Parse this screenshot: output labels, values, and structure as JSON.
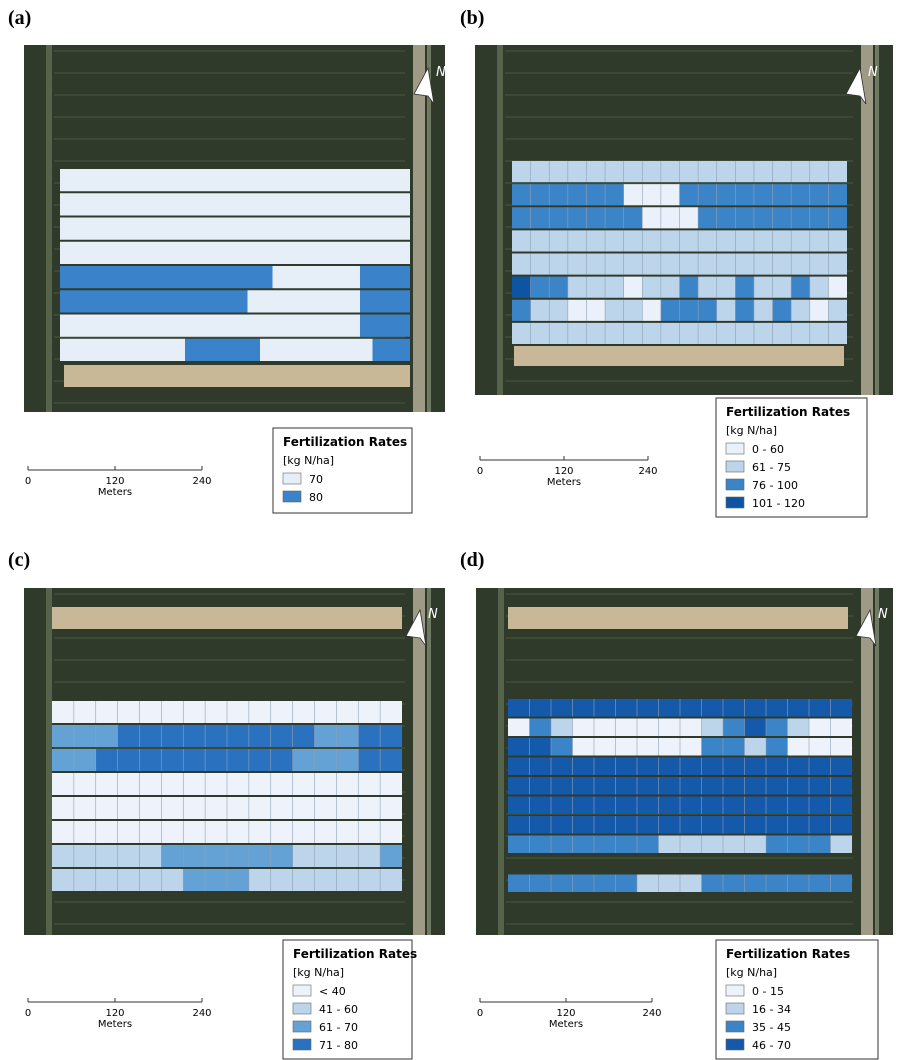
{
  "panels": [
    {
      "label": "(a)",
      "north": "N",
      "legend": {
        "title": "Fertilization Rates",
        "unit": "[kg N/ha]",
        "items": [
          {
            "label": "70",
            "color": "#e6eef8"
          },
          {
            "label": "80",
            "color": "#3a82c9"
          }
        ]
      },
      "scale": {
        "ticks": [
          "0",
          "120",
          "240"
        ],
        "unit": "Meters"
      }
    },
    {
      "label": "(b)",
      "north": "N",
      "legend": {
        "title": "Fertilization Rates",
        "unit": "[kg N/ha]",
        "items": [
          {
            "label": "0 - 60",
            "color": "#eaf1fa"
          },
          {
            "label": "61 - 75",
            "color": "#bcd5ea"
          },
          {
            "label": "76 - 100",
            "color": "#3b84c8"
          },
          {
            "label": "101 - 120",
            "color": "#0d55a3"
          }
        ]
      },
      "scale": {
        "ticks": [
          "0",
          "120",
          "240"
        ],
        "unit": "Meters"
      }
    },
    {
      "label": "(c)",
      "north": "N",
      "legend": {
        "title": "Fertilization Rates",
        "unit": "[kg N/ha]",
        "items": [
          {
            "label": "< 40",
            "color": "#eef3fb"
          },
          {
            "label": "41 - 60",
            "color": "#bcd5ea"
          },
          {
            "label": "61 - 70",
            "color": "#64a2d6"
          },
          {
            "label": "71 - 80",
            "color": "#2a72c0"
          }
        ]
      },
      "scale": {
        "ticks": [
          "0",
          "120",
          "240"
        ],
        "unit": "Meters"
      }
    },
    {
      "label": "(d)",
      "north": "N",
      "legend": {
        "title": "Fertilization Rates",
        "unit": "[kg N/ha]",
        "items": [
          {
            "label": "0 - 15",
            "color": "#eef3fb"
          },
          {
            "label": "16 - 34",
            "color": "#bcd5ea"
          },
          {
            "label": "35 - 45",
            "color": "#3b84c8"
          },
          {
            "label": "46 - 70",
            "color": "#1559ab"
          }
        ]
      },
      "scale": {
        "ticks": [
          "0",
          "120",
          "240"
        ],
        "unit": "Meters"
      }
    }
  ]
}
